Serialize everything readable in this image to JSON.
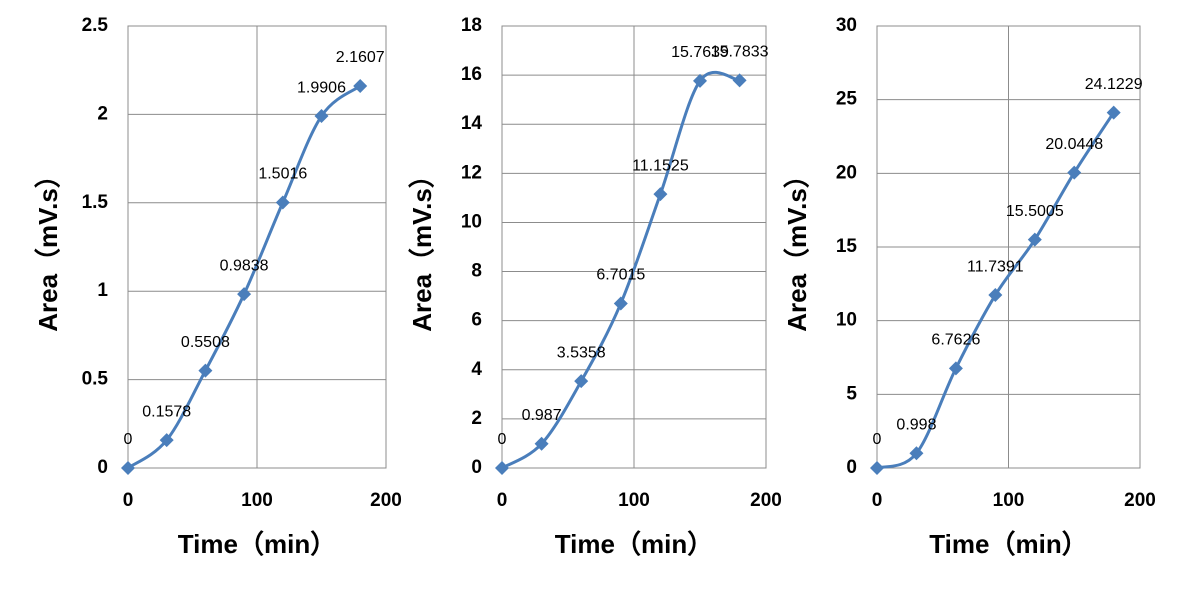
{
  "chart_data": [
    {
      "type": "line",
      "xlabel": "Time（min）",
      "ylabel": "Area（mV.s）",
      "x": [
        0,
        30,
        60,
        90,
        120,
        150,
        180
      ],
      "series": [
        {
          "color": "#4a7ebb",
          "values": [
            0,
            0.1578,
            0.5508,
            0.9838,
            1.5016,
            1.9906,
            2.1607
          ]
        }
      ],
      "xlim": [
        0,
        200
      ],
      "xticks": [
        0,
        100,
        200
      ],
      "ylim": [
        0,
        2.5
      ],
      "yticks": [
        0,
        0.5,
        1,
        1.5,
        2,
        2.5
      ],
      "grid": true,
      "smooth": true
    },
    {
      "type": "line",
      "xlabel": "Time（min）",
      "ylabel": "Area（mV.s）",
      "x": [
        0,
        30,
        60,
        90,
        120,
        150,
        180
      ],
      "series": [
        {
          "color": "#4a7ebb",
          "values": [
            0,
            0.987,
            3.5358,
            6.7015,
            11.1525,
            15.7639,
            15.7833
          ]
        }
      ],
      "xlim": [
        0,
        200
      ],
      "xticks": [
        0,
        100,
        200
      ],
      "ylim": [
        0,
        18
      ],
      "yticks": [
        0,
        2,
        4,
        6,
        8,
        10,
        12,
        14,
        16,
        18
      ],
      "grid": true,
      "smooth": true
    },
    {
      "type": "line",
      "xlabel": "Time（min）",
      "ylabel": "Area（mV.s）",
      "x": [
        0,
        30,
        60,
        90,
        120,
        150,
        180
      ],
      "series": [
        {
          "color": "#4a7ebb",
          "values": [
            0,
            0.998,
            6.7626,
            11.7391,
            15.5005,
            20.0448,
            24.1229
          ]
        }
      ],
      "xlim": [
        0,
        200
      ],
      "xticks": [
        0,
        100,
        200
      ],
      "ylim": [
        0,
        30
      ],
      "yticks": [
        0,
        5,
        10,
        15,
        20,
        25,
        30
      ],
      "grid": true,
      "smooth": true
    }
  ]
}
